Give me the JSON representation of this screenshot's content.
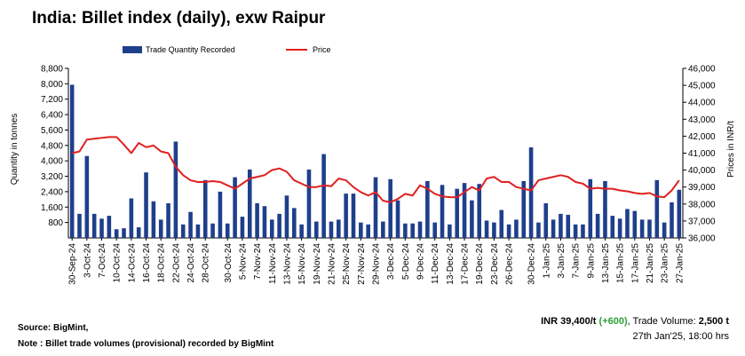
{
  "title": "India: Billet index (daily), exw Raipur",
  "source": "Source: BigMint,",
  "note": "Note : Billet trade volumes (provisional) recorded by BigMint",
  "summary": {
    "price_text": "INR 39,400/t",
    "change_text": "(+600)",
    "volume_label": ", Trade Volume: ",
    "volume_text": "2,500 t",
    "timestamp": "27th Jan'25, 18:00 hrs"
  },
  "colors": {
    "bar": "#1f3f8c",
    "line": "#e02020"
  },
  "chart_data": {
    "type": "bar",
    "combo": "bar+line",
    "ylabel": "Quantity in tonnes",
    "y2label": "Prices in INR/t",
    "ylim": [
      0,
      8800
    ],
    "y_ticks": [
      800,
      1600,
      2400,
      3200,
      4000,
      4800,
      5600,
      6400,
      7200,
      8000,
      8800
    ],
    "y_tick_labels": [
      "800",
      "1,600",
      "2,400",
      "3,200",
      "4,000",
      "4,800",
      "5,600",
      "6,400",
      "7,200",
      "8,000",
      "8,800"
    ],
    "y2lim": [
      36000,
      46000
    ],
    "y2_ticks": [
      36000,
      37000,
      38000,
      39000,
      40000,
      41000,
      42000,
      43000,
      44000,
      45000,
      46000
    ],
    "y2_tick_labels": [
      "36,000",
      "37,000",
      "38,000",
      "39,000",
      "40,000",
      "41,000",
      "42,000",
      "43,000",
      "44,000",
      "45,000",
      "46,000"
    ],
    "legend_position": "top",
    "grid": false,
    "x_tick_labels": [
      "30-Sep-24",
      "3-Oct-24",
      "7-Oct-24",
      "10-Oct-24",
      "14-Oct-24",
      "16-Oct-24",
      "18-Oct-24",
      "22-Oct-24",
      "24-Oct-24",
      "28-Oct-24",
      "30-Oct-24",
      "5-Nov-24",
      "7-Nov-24",
      "11-Nov-24",
      "13-Nov-24",
      "15-Nov-24",
      "19-Nov-24",
      "21-Nov-24",
      "25-Nov-24",
      "27-Nov-24",
      "29-Nov-24",
      "3-Dec-24",
      "5-Dec-24",
      "9-Dec-24",
      "11-Dec-24",
      "13-Dec-24",
      "17-Dec-24",
      "19-Dec-24",
      "23-Dec-24",
      "26-Dec-24",
      "30-Dec-24",
      "1-Jan-25",
      "3-Jan-25",
      "7-Jan-25",
      "9-Jan-25",
      "13-Jan-25",
      "15-Jan-25",
      "17-Jan-25",
      "21-Jan-25",
      "23-Jan-25",
      "27-Jan-25"
    ],
    "series": [
      {
        "name": "Trade Quantity Recorded",
        "type": "bar",
        "axis": "left",
        "values": [
          7950,
          1250,
          4250,
          1250,
          1000,
          1150,
          450,
          500,
          2050,
          550,
          3400,
          1900,
          950,
          1800,
          5000,
          700,
          1350,
          700,
          3000,
          750,
          2400,
          750,
          3150,
          1100,
          3550,
          1800,
          1650,
          950,
          1250,
          2200,
          1550,
          700,
          3550,
          850,
          4350,
          850,
          950,
          2300,
          2300,
          800,
          700,
          3150,
          850,
          3050,
          1950,
          750,
          750,
          850,
          2950,
          800,
          2750,
          700,
          2550,
          2850,
          1950,
          2800,
          900,
          800,
          1450,
          700,
          950,
          2950,
          4700,
          800,
          1800,
          950,
          1250,
          1200,
          700,
          700,
          3050,
          1250,
          2950,
          1150,
          1000,
          1500,
          1400,
          950,
          950,
          3000,
          800,
          1850,
          2500
        ]
      },
      {
        "name": "Price",
        "type": "line",
        "axis": "right",
        "values": [
          41000,
          41100,
          41800,
          41850,
          41900,
          41950,
          41950,
          41500,
          41000,
          41600,
          41350,
          41450,
          41100,
          41000,
          40200,
          39700,
          39400,
          39300,
          39300,
          39350,
          39300,
          39100,
          38900,
          39200,
          39500,
          39600,
          39700,
          40000,
          40100,
          39900,
          39400,
          39200,
          39000,
          39000,
          39100,
          39050,
          39500,
          39400,
          39000,
          38700,
          38500,
          38700,
          38200,
          38100,
          38300,
          38600,
          38500,
          39100,
          38900,
          38600,
          38450,
          38400,
          38400,
          38700,
          39000,
          38800,
          39500,
          39600,
          39300,
          39300,
          39000,
          38900,
          38800,
          39400,
          39500,
          39600,
          39700,
          39600,
          39300,
          39200,
          38900,
          38950,
          38900,
          38900,
          38800,
          38750,
          38650,
          38600,
          38650,
          38450,
          38400,
          38800,
          39400
        ]
      }
    ]
  }
}
